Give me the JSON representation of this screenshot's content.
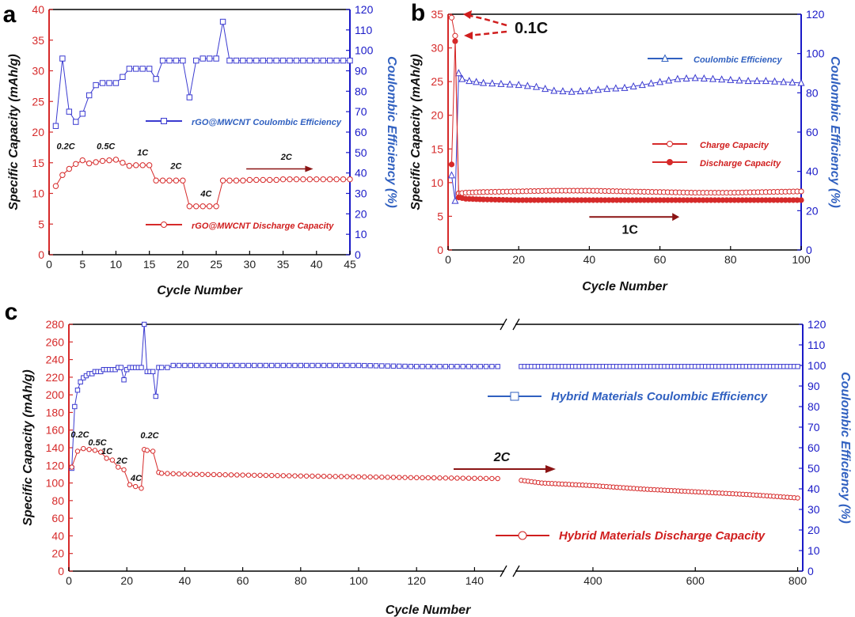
{
  "colors": {
    "red": "#d62a2a",
    "blue": "#3a3ad0",
    "axis_blue": "#1a1ac8",
    "text_red": "#d01e1e",
    "legend_blue": "#3060c0",
    "dark_red": "#8b1414"
  },
  "chart_data": [
    {
      "panel": "a",
      "type": "line",
      "xlabel": "Cycle Number",
      "ylabel": "Specific Capacity (mAh/g)",
      "y2label": "Coulombic Efficiency (%)",
      "xlim": [
        0,
        45
      ],
      "ylim": [
        0,
        40
      ],
      "y2lim": [
        0,
        120
      ],
      "xticks": [
        0,
        5,
        10,
        15,
        20,
        25,
        30,
        35,
        40,
        45
      ],
      "yticks": [
        0,
        5,
        10,
        15,
        20,
        25,
        30,
        35,
        40
      ],
      "y2ticks": [
        0,
        10,
        20,
        30,
        40,
        50,
        60,
        70,
        80,
        90,
        100,
        110,
        120
      ],
      "series": [
        {
          "name": "rGO@MWCNT Coulombic Efficiency",
          "axis": "right",
          "marker": "square",
          "color": "blue",
          "x": [
            1,
            2,
            3,
            4,
            5,
            6,
            7,
            8,
            9,
            10,
            11,
            12,
            13,
            14,
            15,
            16,
            17,
            18,
            19,
            20,
            21,
            22,
            23,
            24,
            25,
            26,
            27,
            28,
            29,
            30,
            31,
            32,
            33,
            34,
            35,
            36,
            37,
            38,
            39,
            40,
            41,
            42,
            43,
            44,
            45
          ],
          "y": [
            63,
            96,
            70,
            65,
            69,
            78,
            83,
            84,
            84,
            84,
            87,
            91,
            91,
            91,
            91,
            86,
            95,
            95,
            95,
            95,
            77,
            95,
            96,
            96,
            96,
            114,
            95,
            95,
            95,
            95,
            95,
            95,
            95,
            95,
            95,
            95,
            95,
            95,
            95,
            95,
            95,
            95,
            95,
            95,
            95
          ]
        },
        {
          "name": "rGO@MWCNT Discharge Capacity",
          "axis": "left",
          "marker": "circle",
          "color": "red",
          "x": [
            1,
            2,
            3,
            4,
            5,
            6,
            7,
            8,
            9,
            10,
            11,
            12,
            13,
            14,
            15,
            16,
            17,
            18,
            19,
            20,
            21,
            22,
            23,
            24,
            25,
            26,
            27,
            28,
            29,
            30,
            31,
            32,
            33,
            34,
            35,
            36,
            37,
            38,
            39,
            40,
            41,
            42,
            43,
            44,
            45
          ],
          "y": [
            11.2,
            13,
            14,
            14.8,
            15.4,
            14.9,
            15.1,
            15.3,
            15.4,
            15.5,
            15,
            14.5,
            14.6,
            14.6,
            14.6,
            12.1,
            12.1,
            12.1,
            12.1,
            12.1,
            7.9,
            7.9,
            7.9,
            7.9,
            7.9,
            12.1,
            12.1,
            12.1,
            12.1,
            12.2,
            12.2,
            12.2,
            12.2,
            12.2,
            12.3,
            12.3,
            12.3,
            12.3,
            12.3,
            12.3,
            12.3,
            12.3,
            12.3,
            12.3,
            12.3
          ]
        }
      ],
      "annotations": [
        {
          "text": "0.2C",
          "x": 2.5,
          "y": 17.2
        },
        {
          "text": "0.5C",
          "x": 8.5,
          "y": 17.2
        },
        {
          "text": "1C",
          "x": 14,
          "y": 16.2
        },
        {
          "text": "2C",
          "x": 19,
          "y": 14
        },
        {
          "text": "4C",
          "x": 23.5,
          "y": 9.5
        },
        {
          "text": "2C",
          "x": 35.5,
          "y": 15.5
        }
      ],
      "legend": [
        "rGO@MWCNT Coulombic Efficiency",
        "rGO@MWCNT Discharge Capacity"
      ]
    },
    {
      "panel": "b",
      "type": "line",
      "xlabel": "Cycle Number",
      "ylabel": "Specific Capacity (mAh/g)",
      "y2label": "Coulombic Efficiency (%)",
      "xlim": [
        0,
        100
      ],
      "ylim": [
        0,
        35
      ],
      "y2lim": [
        0,
        120
      ],
      "xticks": [
        0,
        20,
        40,
        60,
        80,
        100
      ],
      "yticks": [
        0,
        5,
        10,
        15,
        20,
        25,
        30,
        35
      ],
      "y2ticks": [
        0,
        20,
        40,
        60,
        80,
        100,
        120
      ],
      "series": [
        {
          "name": "Coulombic Efficiency",
          "axis": "right",
          "marker": "triangle",
          "color": "blue",
          "x": [
            1,
            2,
            3,
            4,
            6,
            8,
            10,
            15,
            20,
            25,
            30,
            35,
            40,
            45,
            50,
            55,
            60,
            65,
            70,
            75,
            80,
            85,
            90,
            95,
            100
          ],
          "y": [
            38,
            25,
            90,
            87,
            86,
            85.5,
            85,
            84.5,
            84,
            83,
            81,
            80.5,
            81,
            82,
            82.5,
            84,
            85.5,
            87,
            87.5,
            87,
            86.5,
            86,
            86,
            85.5,
            85
          ]
        },
        {
          "name": "Charge Capacity",
          "axis": "left",
          "marker": "circle-open",
          "color": "red",
          "x": [
            1,
            2,
            3,
            5,
            10,
            20,
            30,
            40,
            50,
            60,
            70,
            80,
            90,
            100
          ],
          "y": [
            34.5,
            31.8,
            8.4,
            8.5,
            8.6,
            8.7,
            8.8,
            8.8,
            8.7,
            8.6,
            8.5,
            8.5,
            8.6,
            8.7
          ]
        },
        {
          "name": "Discharge Capacity",
          "axis": "left",
          "marker": "circle-filled",
          "color": "red",
          "x": [
            1,
            2,
            3,
            5,
            10,
            20,
            30,
            40,
            50,
            60,
            70,
            80,
            90,
            100
          ],
          "y": [
            12.7,
            31,
            7.8,
            7.6,
            7.5,
            7.4,
            7.4,
            7.4,
            7.4,
            7.4,
            7.4,
            7.4,
            7.4,
            7.4
          ]
        }
      ],
      "annotations": [
        {
          "text": "0.1C"
        },
        {
          "text": "1C"
        }
      ],
      "legend": [
        "Coulombic Efficiency",
        "Charge Capacity",
        "Discharge Capacity"
      ]
    },
    {
      "panel": "c",
      "type": "line",
      "xlabel": "Cycle Number",
      "ylabel": "Specific Capacity (mAh/g)",
      "y2label": "Coulombic Efficiency (%)",
      "xlim": [
        0,
        810
      ],
      "axis_break": [
        150,
        250
      ],
      "ylim": [
        0,
        280
      ],
      "y2lim": [
        0,
        120
      ],
      "xticks": [
        0,
        20,
        40,
        60,
        80,
        100,
        120,
        140,
        400,
        600,
        800
      ],
      "yticks": [
        0,
        20,
        40,
        60,
        80,
        100,
        120,
        140,
        160,
        180,
        200,
        220,
        240,
        260,
        280
      ],
      "y2ticks": [
        0,
        10,
        20,
        30,
        40,
        50,
        60,
        70,
        80,
        90,
        100,
        110,
        120
      ],
      "series": [
        {
          "name": "Hybrid Materials Coulombic Efficiency",
          "axis": "right",
          "marker": "square",
          "color": "blue",
          "x": [
            1,
            2,
            3,
            4,
            5,
            6,
            7,
            8,
            9,
            10,
            11,
            12,
            13,
            14,
            15,
            16,
            17,
            18,
            19,
            20,
            21,
            22,
            23,
            24,
            25,
            26,
            27,
            28,
            29,
            30,
            31,
            32,
            34,
            36,
            40,
            50,
            60,
            80,
            100,
            120,
            140,
            148,
            260,
            300,
            400,
            500,
            600,
            700,
            800
          ],
          "y": [
            50,
            80,
            88,
            92,
            94,
            95,
            96,
            96,
            97,
            97,
            97,
            98,
            98,
            98,
            98,
            98,
            99,
            99,
            93,
            98,
            99,
            99,
            99,
            99,
            99,
            120,
            97,
            97,
            97,
            85,
            99,
            99,
            99,
            100,
            100,
            100,
            100,
            100,
            100,
            99.5,
            99.5,
            99.5,
            99.5,
            99.5,
            99.5,
            99.5,
            99.5,
            99.5,
            99.5
          ]
        },
        {
          "name": "Hybrid Materials Discharge Capacity",
          "axis": "left",
          "marker": "circle",
          "color": "red",
          "x": [
            1,
            3,
            5,
            7,
            9,
            11,
            13,
            15,
            17,
            19,
            21,
            23,
            25,
            26,
            27,
            29,
            31,
            32,
            40,
            60,
            80,
            100,
            120,
            148,
            260,
            300,
            400,
            500,
            600,
            700,
            800
          ],
          "y": [
            118,
            136,
            139,
            138,
            137,
            135,
            128,
            126,
            118,
            115,
            98,
            96,
            94,
            138,
            137,
            136,
            112,
            111,
            110,
            109,
            108,
            107,
            106,
            105,
            103,
            100,
            97,
            93,
            90,
            87,
            83
          ]
        }
      ],
      "annotations": [
        {
          "text": "0.2C"
        },
        {
          "text": "0.5C"
        },
        {
          "text": "1C"
        },
        {
          "text": "2C"
        },
        {
          "text": "4C"
        },
        {
          "text": "0.2C"
        },
        {
          "text": "2C"
        }
      ],
      "legend": [
        "Hybrid Materials Coulombic Efficiency",
        "Hybrid Materials Discharge Capacity"
      ]
    }
  ]
}
